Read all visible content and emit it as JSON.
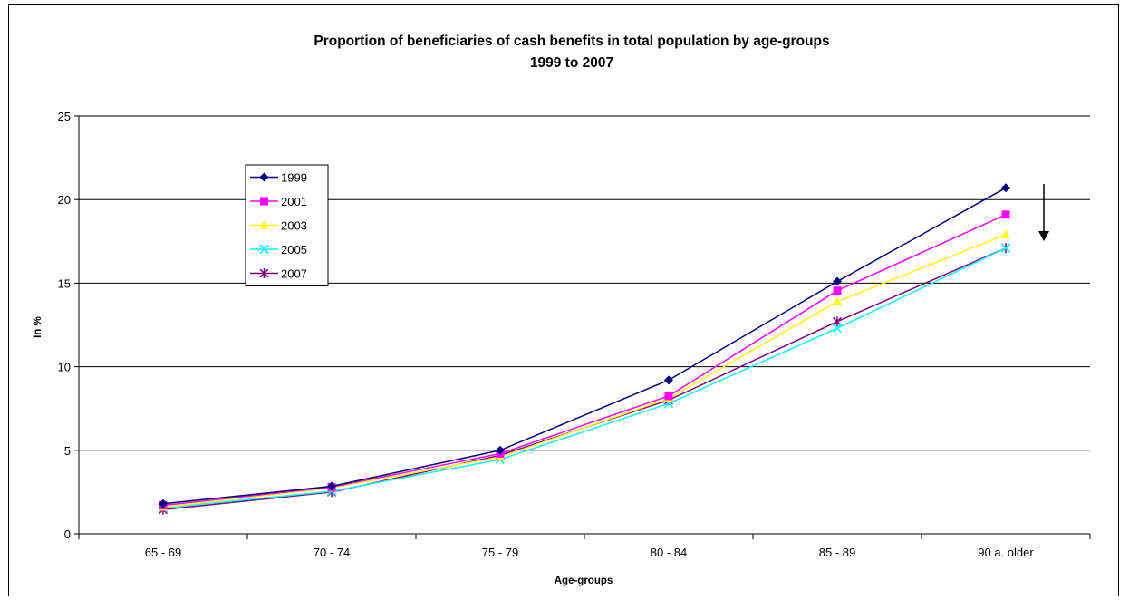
{
  "chart_data": {
    "type": "line",
    "title": "Proportion of beneficiaries of cash benefits in total population by age-groups",
    "subtitle": "1999 to 2007",
    "xlabel": "Age-groups",
    "ylabel": "In %",
    "categories": [
      "65 - 69",
      "70 - 74",
      "75 - 79",
      "80 - 84",
      "85 - 89",
      "90 a. older"
    ],
    "ylim": [
      0,
      25
    ],
    "yticks": [
      0,
      5,
      10,
      15,
      20,
      25
    ],
    "grid": true,
    "legend_position": "left",
    "annotation": "downward arrow beside 90 a. older",
    "series": [
      {
        "name": "1999",
        "color": "#000080",
        "marker": "diamond",
        "values": [
          1.8,
          2.85,
          5.0,
          9.2,
          15.1,
          20.7
        ]
      },
      {
        "name": "2001",
        "color": "#FF00FF",
        "marker": "square",
        "values": [
          1.7,
          2.8,
          4.8,
          8.25,
          14.55,
          19.1
        ]
      },
      {
        "name": "2003",
        "color": "#FFFF00",
        "marker": "triangle",
        "values": [
          1.6,
          2.75,
          4.6,
          8.1,
          13.9,
          17.9
        ]
      },
      {
        "name": "2005",
        "color": "#00FFFF",
        "marker": "x",
        "values": [
          1.55,
          2.55,
          4.45,
          7.8,
          12.3,
          17.1
        ]
      },
      {
        "name": "2007",
        "color": "#800080",
        "marker": "star",
        "values": [
          1.45,
          2.5,
          4.7,
          8.0,
          12.7,
          17.1
        ]
      }
    ]
  }
}
